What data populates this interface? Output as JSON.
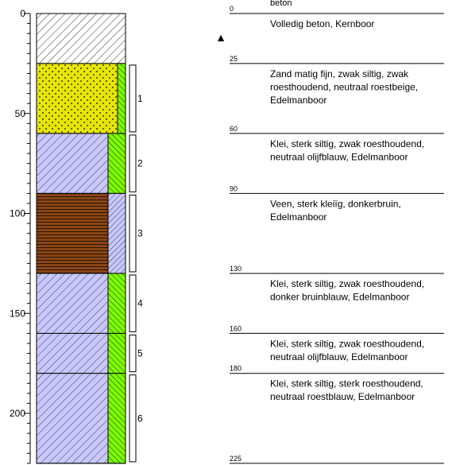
{
  "depth_axis": {
    "unit": "cm",
    "range": [
      0,
      225
    ],
    "major_ticks": [
      0,
      50,
      100,
      150,
      200
    ],
    "minor_step": 5
  },
  "layers": [
    {
      "top": 0,
      "bottom": 25,
      "pattern": "diag-white",
      "fill": "#ffffff",
      "side": "none"
    },
    {
      "top": 25,
      "bottom": 60,
      "pattern": "dots",
      "fill": "#e6e600",
      "side": "green-hatch"
    },
    {
      "top": 60,
      "bottom": 90,
      "pattern": "diag-lavender",
      "fill": "#c8c8ff",
      "side": "green-hatch"
    },
    {
      "top": 90,
      "bottom": 130,
      "pattern": "peat",
      "fill": "#8b4513",
      "side": "lav-hatch"
    },
    {
      "top": 130,
      "bottom": 160,
      "pattern": "diag-lavender",
      "fill": "#c8c8ff",
      "side": "green-hatch"
    },
    {
      "top": 160,
      "bottom": 180,
      "pattern": "diag-lavender",
      "fill": "#c8c8ff",
      "side": "green-hatch"
    },
    {
      "top": 180,
      "bottom": 225,
      "pattern": "diag-lavender",
      "fill": "#c8c8ff",
      "side": "green-hatch"
    }
  ],
  "samples": [
    {
      "label": "1",
      "top": 25,
      "bottom": 60
    },
    {
      "label": "2",
      "top": 60,
      "bottom": 90
    },
    {
      "label": "3",
      "top": 90,
      "bottom": 130
    },
    {
      "label": "4",
      "top": 130,
      "bottom": 160
    },
    {
      "label": "5",
      "top": 160,
      "bottom": 180
    },
    {
      "label": "6",
      "top": 180,
      "bottom": 225
    }
  ],
  "water_level_symbol": "▲",
  "descriptions": [
    {
      "depth_label": "0",
      "header": "beton",
      "lines": [
        "Volledig beton, Kernboor"
      ]
    },
    {
      "depth_label": "25",
      "lines": [
        "Zand matig fijn, zwak siltig, zwak",
        "roesthoudend, neutraal roestbeige,",
        "Edelmanboor"
      ]
    },
    {
      "depth_label": "60",
      "lines": [
        "Klei, sterk siltig, zwak roesthoudend,",
        "neutraal olijfblauw,  Edelmanboor"
      ]
    },
    {
      "depth_label": "90",
      "lines": [
        "Veen, sterk kleiïg, donkerbruin,",
        "Edelmanboor"
      ]
    },
    {
      "depth_label": "130",
      "lines": [
        "Klei, sterk siltig, zwak roesthoudend,",
        "donker bruinblauw,  Edelmanboor"
      ]
    },
    {
      "depth_label": "160",
      "lines": [
        "Klei, sterk siltig, zwak roesthoudend,",
        "neutraal olijfblauw,  Edelmanboor"
      ]
    },
    {
      "depth_label": "180",
      "lines": [
        "Klei, sterk siltig, sterk roesthoudend,",
        "neutraal roestblauw,  Edelmanboor"
      ]
    },
    {
      "depth_label": "225",
      "lines": []
    }
  ],
  "colors": {
    "sand": "#e6e600",
    "clay": "#c8c8ff",
    "peat": "#8b4513",
    "side_green": "#7cfc00",
    "line": "#000000"
  }
}
